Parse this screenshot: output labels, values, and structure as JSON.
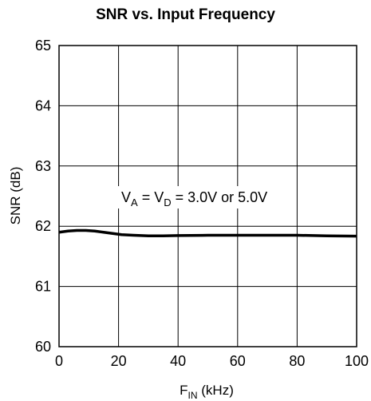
{
  "chart_data": {
    "type": "line",
    "title": "SNR vs. Input Frequency",
    "xlabel": {
      "main": "F",
      "sub": "IN",
      "unit": " (kHz)"
    },
    "ylabel": "SNR (dB)",
    "xlim": [
      0,
      100
    ],
    "ylim": [
      60,
      65
    ],
    "xticks": [
      "0",
      "20",
      "40",
      "60",
      "80",
      "100"
    ],
    "yticks": [
      "60",
      "61",
      "62",
      "63",
      "64",
      "65"
    ],
    "grid": true,
    "annotation": {
      "p1": "V",
      "s1": "A",
      "p2": " = V",
      "s2": "D",
      "p3": " = 3.0V or 5.0V"
    },
    "series": [
      {
        "x": [
          0,
          3,
          6,
          9,
          12,
          15,
          18,
          21,
          25,
          30,
          35,
          40,
          50,
          60,
          70,
          80,
          90,
          100
        ],
        "y": [
          61.9,
          61.92,
          61.93,
          61.93,
          61.92,
          61.9,
          61.88,
          61.86,
          61.85,
          61.84,
          61.84,
          61.845,
          61.85,
          61.85,
          61.85,
          61.85,
          61.84,
          61.835
        ]
      }
    ]
  }
}
